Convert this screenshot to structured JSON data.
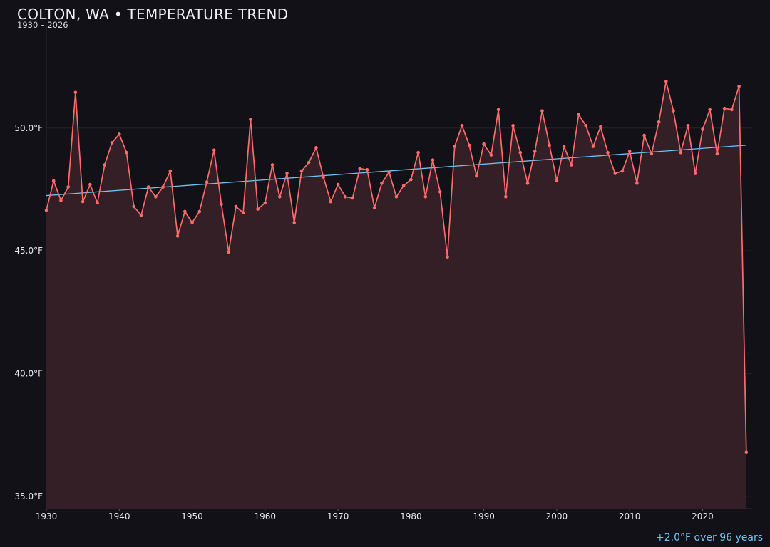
{
  "colors": {
    "background": "#121117",
    "series": "#ff6b6b",
    "area": "#341f26",
    "trend": "#6ec3f2",
    "grid": "#2a2228"
  },
  "chart_data": {
    "type": "line",
    "title": "COLTON, WA • TEMPERATURE TREND",
    "subtitle": "1930 – 2026",
    "xlabel": "",
    "ylabel": "",
    "xlim": [
      1930,
      2026.8
    ],
    "ylim": [
      34.5,
      54.2
    ],
    "grid": true,
    "y_ticks": [
      {
        "value": 35,
        "label": "35.0°F"
      },
      {
        "value": 40,
        "label": "40.0°F"
      },
      {
        "value": 45,
        "label": "45.0°F"
      },
      {
        "value": 50,
        "label": "50.0°F"
      }
    ],
    "x_ticks": [
      {
        "value": 1930,
        "label": "1930"
      },
      {
        "value": 1940,
        "label": "1940"
      },
      {
        "value": 1950,
        "label": "1950"
      },
      {
        "value": 1960,
        "label": "1960"
      },
      {
        "value": 1970,
        "label": "1970"
      },
      {
        "value": 1980,
        "label": "1980"
      },
      {
        "value": 1990,
        "label": "1990"
      },
      {
        "value": 2000,
        "label": "2000"
      },
      {
        "value": 2010,
        "label": "2010"
      },
      {
        "value": 2020,
        "label": "2020"
      }
    ],
    "x": [
      1930,
      1931,
      1932,
      1933,
      1934,
      1935,
      1936,
      1937,
      1938,
      1939,
      1940,
      1941,
      1942,
      1943,
      1944,
      1945,
      1946,
      1947,
      1948,
      1949,
      1950,
      1951,
      1952,
      1953,
      1954,
      1955,
      1956,
      1957,
      1958,
      1959,
      1960,
      1961,
      1962,
      1963,
      1964,
      1965,
      1966,
      1967,
      1968,
      1969,
      1970,
      1971,
      1972,
      1973,
      1974,
      1975,
      1976,
      1977,
      1978,
      1979,
      1980,
      1981,
      1982,
      1983,
      1984,
      1985,
      1986,
      1987,
      1988,
      1989,
      1990,
      1991,
      1992,
      1993,
      1994,
      1995,
      1996,
      1997,
      1998,
      1999,
      2000,
      2001,
      2002,
      2003,
      2004,
      2005,
      2006,
      2007,
      2008,
      2009,
      2010,
      2011,
      2012,
      2013,
      2014,
      2015,
      2016,
      2017,
      2018,
      2019,
      2020,
      2021,
      2022,
      2023,
      2024,
      2025,
      2026
    ],
    "series": [
      {
        "values": [
          46.65,
          47.85,
          47.05,
          47.6,
          51.45,
          47.0,
          47.7,
          46.95,
          48.5,
          49.4,
          49.75,
          49.0,
          46.8,
          46.45,
          47.6,
          47.2,
          47.6,
          48.25,
          45.6,
          46.6,
          46.15,
          46.6,
          47.8,
          49.1,
          46.9,
          44.95,
          46.8,
          46.55,
          50.35,
          46.7,
          46.95,
          48.5,
          47.2,
          48.15,
          46.15,
          48.25,
          48.6,
          49.2,
          48.0,
          47.0,
          47.7,
          47.2,
          47.15,
          48.35,
          48.3,
          46.75,
          47.75,
          48.2,
          47.2,
          47.65,
          47.9,
          49.0,
          47.2,
          48.7,
          47.4,
          44.75,
          49.25,
          50.1,
          49.3,
          48.05,
          49.35,
          48.9,
          50.75,
          47.2,
          50.1,
          49.0,
          47.75,
          49.05,
          50.7,
          49.3,
          47.85,
          49.25,
          48.5,
          50.55,
          50.1,
          49.25,
          50.05,
          49.0,
          48.15,
          48.25,
          49.05,
          47.75,
          49.7,
          48.95,
          50.25,
          51.9,
          50.7,
          49.0,
          50.1,
          48.15,
          49.95,
          50.75,
          48.95,
          50.8,
          50.75,
          51.7,
          36.8
        ]
      }
    ],
    "trend_line": {
      "start": [
        1930,
        47.25
      ],
      "end": [
        2026,
        49.3
      ]
    },
    "annotation": "+2.0°F over 96 years"
  }
}
